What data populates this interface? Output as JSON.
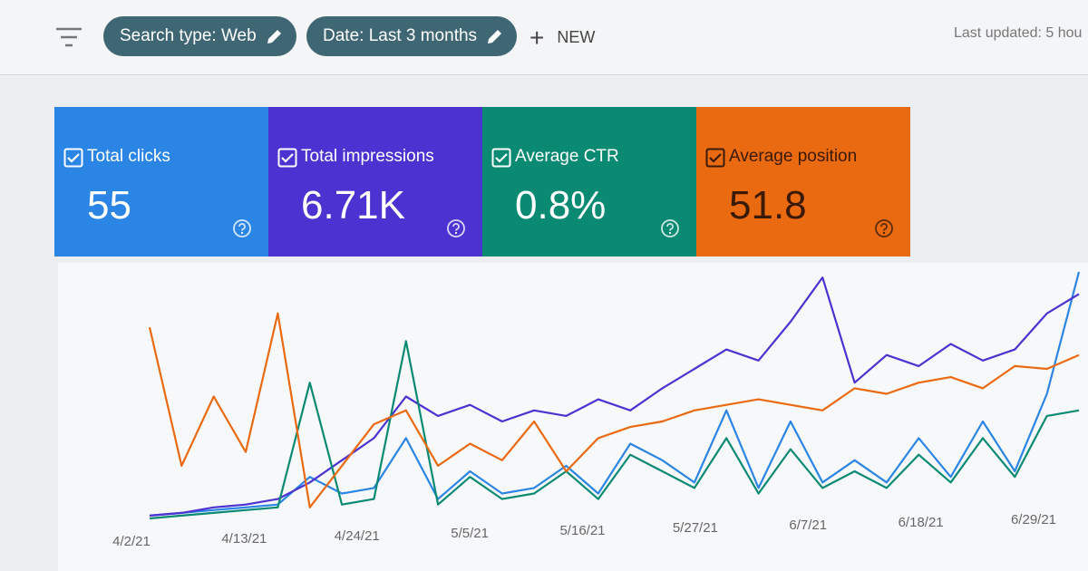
{
  "toolbar": {
    "chips": [
      "Search type: Web",
      "Date: Last 3 months"
    ],
    "new": "NEW",
    "last_updated": "Last updated: 5 hou"
  },
  "cards": [
    {
      "value": "55"
    },
    {
      "value": "6.71K"
    },
    {
      "value": "0.8%"
    },
    {
      "value": "51.8"
    }
  ],
  "chart": {
    "type": "line",
    "x_labels": [
      "4/2/21",
      "4/13/21",
      "4/24/21",
      "5/5/21",
      "5/16/21",
      "5/27/21",
      "6/7/21",
      "6/18/21",
      "6/29/21"
    ],
    "series": [
      {
        "name": "Total clicks",
        "color": "#2b85e4",
        "text_color": "#ffffff",
        "values": [
          2,
          3,
          4,
          5,
          6,
          16,
          10,
          12,
          30,
          8,
          18,
          10,
          12,
          20,
          10,
          28,
          22,
          14,
          40,
          12,
          36,
          14,
          22,
          14,
          30,
          16,
          36,
          18,
          46,
          90
        ]
      },
      {
        "name": "Total impressions",
        "color": "#4b32d1",
        "text_color": "#ffffff",
        "values": [
          2,
          3,
          5,
          6,
          8,
          14,
          22,
          30,
          45,
          38,
          42,
          36,
          40,
          38,
          44,
          40,
          48,
          55,
          62,
          58,
          72,
          88,
          50,
          60,
          56,
          64,
          58,
          62,
          75,
          82
        ]
      },
      {
        "name": "Average CTR",
        "color": "#0b8a73",
        "text_color": "#ffffff",
        "values": [
          1,
          2,
          3,
          4,
          5,
          50,
          6,
          8,
          65,
          6,
          16,
          8,
          10,
          18,
          8,
          24,
          18,
          12,
          30,
          10,
          26,
          12,
          18,
          12,
          24,
          14,
          30,
          16,
          38,
          40
        ]
      },
      {
        "name": "Average position",
        "color": "#ea6a12",
        "text_color": "#3a1a05",
        "values": [
          70,
          20,
          45,
          25,
          75,
          5,
          20,
          35,
          40,
          20,
          28,
          22,
          36,
          18,
          30,
          34,
          36,
          40,
          42,
          44,
          42,
          40,
          48,
          46,
          50,
          52,
          48,
          56,
          55,
          60
        ]
      }
    ]
  }
}
